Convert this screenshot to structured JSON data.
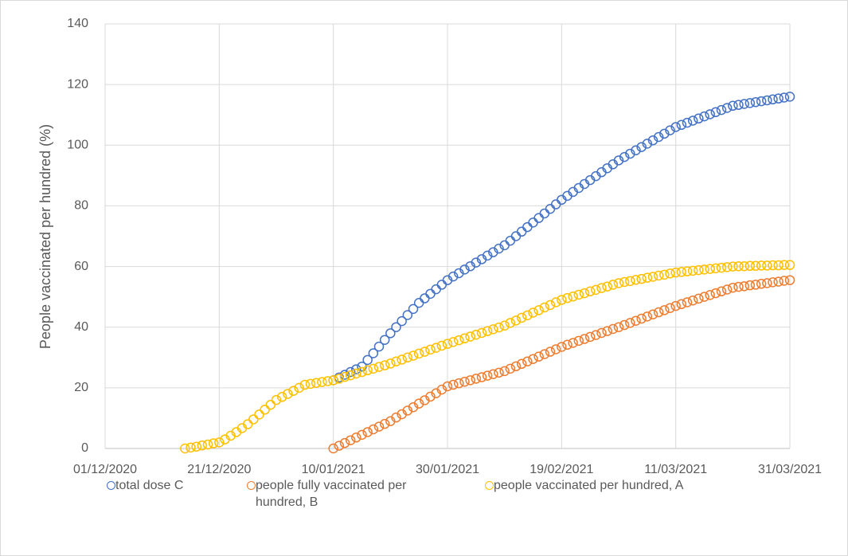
{
  "chart_data": {
    "type": "scatter",
    "y_label": "People vaccinated per hundred (%)",
    "x": [
      "2020-12-15",
      "2020-12-16",
      "2020-12-17",
      "2020-12-18",
      "2020-12-19",
      "2020-12-20",
      "2020-12-21",
      "2020-12-22",
      "2020-12-23",
      "2020-12-24",
      "2020-12-25",
      "2020-12-26",
      "2020-12-27",
      "2020-12-28",
      "2020-12-29",
      "2020-12-30",
      "2020-12-31",
      "2021-01-01",
      "2021-01-02",
      "2021-01-03",
      "2021-01-04",
      "2021-01-05",
      "2021-01-06",
      "2021-01-07",
      "2021-01-08",
      "2021-01-09",
      "2021-01-10",
      "2021-01-11",
      "2021-01-12",
      "2021-01-13",
      "2021-01-14",
      "2021-01-15",
      "2021-01-16",
      "2021-01-17",
      "2021-01-18",
      "2021-01-19",
      "2021-01-20",
      "2021-01-21",
      "2021-01-22",
      "2021-01-23",
      "2021-01-24",
      "2021-01-25",
      "2021-01-26",
      "2021-01-27",
      "2021-01-28",
      "2021-01-29",
      "2021-01-30",
      "2021-01-31",
      "2021-02-01",
      "2021-02-02",
      "2021-02-03",
      "2021-02-04",
      "2021-02-05",
      "2021-02-06",
      "2021-02-07",
      "2021-02-08",
      "2021-02-09",
      "2021-02-10",
      "2021-02-11",
      "2021-02-12",
      "2021-02-13",
      "2021-02-14",
      "2021-02-15",
      "2021-02-16",
      "2021-02-17",
      "2021-02-18",
      "2021-02-19",
      "2021-02-20",
      "2021-02-21",
      "2021-02-22",
      "2021-02-23",
      "2021-02-24",
      "2021-02-25",
      "2021-02-26",
      "2021-02-27",
      "2021-02-28",
      "2021-03-01",
      "2021-03-02",
      "2021-03-03",
      "2021-03-04",
      "2021-03-05",
      "2021-03-06",
      "2021-03-07",
      "2021-03-08",
      "2021-03-09",
      "2021-03-10",
      "2021-03-11",
      "2021-03-12",
      "2021-03-13",
      "2021-03-14",
      "2021-03-15",
      "2021-03-16",
      "2021-03-17",
      "2021-03-18",
      "2021-03-19",
      "2021-03-20",
      "2021-03-21",
      "2021-03-22",
      "2021-03-23",
      "2021-03-24",
      "2021-03-25",
      "2021-03-26",
      "2021-03-27",
      "2021-03-28",
      "2021-03-29",
      "2021-03-30",
      "2021-03-31"
    ],
    "series": [
      {
        "name": "total dose C",
        "color": "#4472c4",
        "values": [
          null,
          null,
          null,
          null,
          null,
          null,
          null,
          null,
          null,
          null,
          null,
          null,
          null,
          null,
          null,
          null,
          null,
          null,
          null,
          null,
          null,
          null,
          null,
          null,
          null,
          null,
          22.5,
          23.4,
          24.3,
          25.2,
          26.1,
          27,
          29.2,
          31.4,
          33.6,
          35.8,
          38,
          40,
          42,
          44,
          46,
          48,
          49.5,
          51,
          52.5,
          54,
          55.5,
          56.7,
          57.8,
          59,
          60.1,
          61.3,
          62.4,
          63.6,
          64.7,
          65.9,
          67,
          68.5,
          70,
          71.5,
          73,
          74.5,
          76,
          77.5,
          79,
          80.5,
          82,
          83.3,
          84.6,
          85.9,
          87.2,
          88.5,
          89.8,
          91.1,
          92.4,
          93.7,
          95,
          96.1,
          97.2,
          98.3,
          99.4,
          100.5,
          101.6,
          102.7,
          103.8,
          104.9,
          106,
          106.7,
          107.4,
          108.1,
          108.8,
          109.5,
          110.2,
          110.9,
          111.6,
          112.3,
          113,
          113.3,
          113.6,
          113.9,
          114.2,
          114.5,
          114.8,
          115.1,
          115.4,
          115.7,
          116
        ]
      },
      {
        "name": "people fully vaccinated per hundred, B",
        "color": "#ed7d31",
        "values": [
          null,
          null,
          null,
          null,
          null,
          null,
          null,
          null,
          null,
          null,
          null,
          null,
          null,
          null,
          null,
          null,
          null,
          null,
          null,
          null,
          null,
          null,
          null,
          null,
          null,
          null,
          0,
          0.9,
          1.8,
          2.7,
          3.6,
          4.5,
          5.4,
          6.3,
          7.2,
          8.1,
          9,
          10.2,
          11.3,
          12.5,
          13.6,
          14.8,
          15.9,
          17.1,
          18.2,
          19.4,
          20.5,
          21,
          21.5,
          22,
          22.5,
          23,
          23.5,
          24,
          24.5,
          25,
          25.5,
          26.3,
          27.1,
          27.9,
          28.7,
          29.5,
          30.3,
          31.1,
          31.9,
          32.7,
          33.5,
          34.2,
          34.8,
          35.5,
          36.1,
          36.8,
          37.4,
          38.1,
          38.7,
          39.4,
          40,
          40.7,
          41.4,
          42.1,
          42.8,
          43.5,
          44.2,
          44.9,
          45.6,
          46.3,
          47,
          47.6,
          48.2,
          48.8,
          49.4,
          50,
          50.6,
          51.2,
          51.8,
          52.4,
          53,
          53.3,
          53.5,
          53.8,
          54,
          54.3,
          54.5,
          54.8,
          55,
          55.3,
          55.5
        ]
      },
      {
        "name": "people vaccinated per hundred, A",
        "color": "#ffc000",
        "values": [
          0,
          0.3,
          0.6,
          1,
          1.3,
          1.7,
          2,
          3,
          4.2,
          5.4,
          6.7,
          8,
          9.6,
          11.2,
          12.8,
          14.4,
          16,
          17,
          18,
          19,
          20,
          21,
          21.3,
          21.6,
          21.9,
          22.2,
          22.5,
          23,
          23.6,
          24.1,
          24.7,
          25.2,
          25.8,
          26.3,
          26.9,
          27.4,
          28,
          28.7,
          29.3,
          30,
          30.6,
          31.3,
          31.9,
          32.6,
          33.2,
          33.9,
          34.5,
          35.1,
          35.7,
          36.3,
          36.9,
          37.5,
          38.1,
          38.7,
          39.3,
          39.9,
          40.5,
          41.4,
          42.2,
          43.1,
          43.9,
          44.8,
          45.6,
          46.5,
          47.3,
          48.2,
          49,
          49.6,
          50.1,
          50.7,
          51.2,
          51.8,
          52.3,
          52.9,
          53.4,
          54,
          54.5,
          54.9,
          55.2,
          55.6,
          55.9,
          56.3,
          56.6,
          57,
          57.3,
          57.7,
          58,
          58.2,
          58.4,
          58.6,
          58.8,
          59,
          59.2,
          59.4,
          59.6,
          59.8,
          60,
          60.1,
          60.1,
          60.2,
          60.2,
          60.3,
          60.3,
          60.4,
          60.4,
          60.5,
          60.5
        ]
      }
    ],
    "xlim": [
      "2020-12-01",
      "2021-03-31"
    ],
    "xticks": [
      {
        "value": "2020-12-01",
        "label": "01/12/2020"
      },
      {
        "value": "2020-12-21",
        "label": "21/12/2020"
      },
      {
        "value": "2021-01-10",
        "label": "10/01/2021"
      },
      {
        "value": "2021-01-30",
        "label": "30/01/2021"
      },
      {
        "value": "2021-02-19",
        "label": "19/02/2021"
      },
      {
        "value": "2021-03-11",
        "label": "11/03/2021"
      },
      {
        "value": "2021-03-31",
        "label": "31/03/2021"
      }
    ],
    "ylim": [
      0,
      140
    ],
    "yticks": [
      0,
      20,
      40,
      60,
      80,
      100,
      120,
      140
    ],
    "grid": true,
    "legend": "bottom"
  }
}
